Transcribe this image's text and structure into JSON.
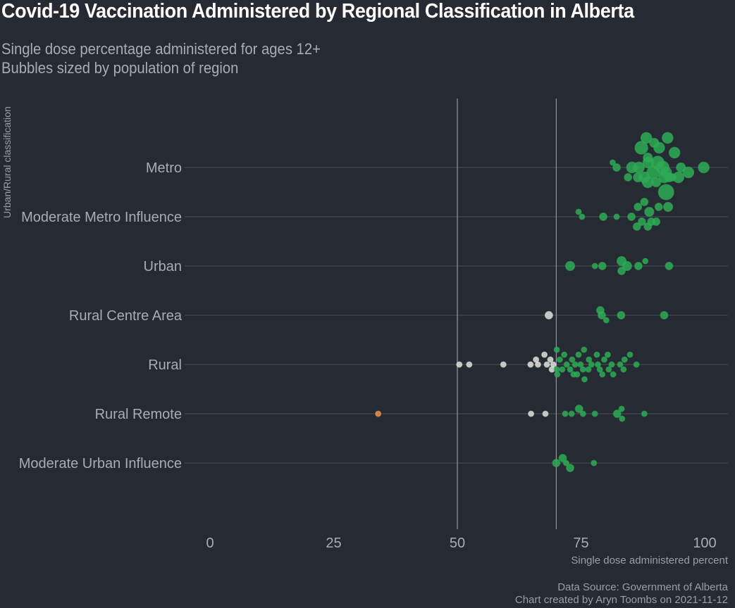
{
  "title": "Covid-19 Vaccination Administered by Regional Classification in Alberta",
  "subtitle_line1": "Single dose percentage administered for ages 12+",
  "subtitle_line2": "Bubbles sized by population of region",
  "caption_line1": "Data Source: Government of Alberta",
  "caption_line2": "Chart created by Aryn Toombs on 2021-11-12",
  "colors": {
    "background": "#262a33",
    "high": "#2eaa55",
    "medium": "#dfe3dc",
    "low": "#f0924a",
    "gridline": "#4a4e57",
    "reference_line": "#8c8f96"
  },
  "chart_data": {
    "type": "scatter",
    "title": "Covid-19 Vaccination Administered by Regional Classification in Alberta",
    "xlabel": "Single dose administered percent",
    "ylabel": "Urban/Rural classification",
    "xlim": [
      0,
      105
    ],
    "xticks": [
      0,
      25,
      50,
      75,
      100
    ],
    "reference_lines": [
      50,
      70
    ],
    "grid": "horizontal",
    "legend": "none",
    "categories": [
      "Metro",
      "Moderate Metro Influence",
      "Urban",
      "Rural Centre Area",
      "Rural",
      "Rural Remote",
      "Moderate Urban Influence"
    ],
    "points": [
      {
        "cat": 0,
        "x": 88.2,
        "off": -6,
        "size": 4
      },
      {
        "cat": 0,
        "x": 89.8,
        "off": -5,
        "size": 3
      },
      {
        "cat": 0,
        "x": 92.5,
        "off": -6,
        "size": 4
      },
      {
        "cat": 0,
        "x": 87.2,
        "off": -4,
        "size": 5
      },
      {
        "cat": 0,
        "x": 90.8,
        "off": -4,
        "size": 4
      },
      {
        "cat": 0,
        "x": 88.5,
        "off": -2,
        "size": 3
      },
      {
        "cat": 0,
        "x": 90.5,
        "off": -1,
        "size": 5
      },
      {
        "cat": 0,
        "x": 93.9,
        "off": -3,
        "size": 4
      },
      {
        "cat": 0,
        "x": 88.6,
        "off": -1,
        "size": 4
      },
      {
        "cat": 0,
        "x": 86.7,
        "off": 0,
        "size": 4
      },
      {
        "cat": 0,
        "x": 91.5,
        "off": 0,
        "size": 5
      },
      {
        "cat": 0,
        "x": 95.2,
        "off": 0,
        "size": 3
      },
      {
        "cat": 0,
        "x": 99.8,
        "off": 0,
        "size": 4
      },
      {
        "cat": 0,
        "x": 81.4,
        "off": -1,
        "size": 1
      },
      {
        "cat": 0,
        "x": 82.2,
        "off": 0,
        "size": 2
      },
      {
        "cat": 0,
        "x": 85.3,
        "off": 0,
        "size": 4
      },
      {
        "cat": 0,
        "x": 89.6,
        "off": 1,
        "size": 5
      },
      {
        "cat": 0,
        "x": 92.2,
        "off": 1,
        "size": 4
      },
      {
        "cat": 0,
        "x": 96.7,
        "off": 1,
        "size": 4
      },
      {
        "cat": 0,
        "x": 84.5,
        "off": 2,
        "size": 2
      },
      {
        "cat": 0,
        "x": 87.8,
        "off": 2,
        "size": 4
      },
      {
        "cat": 0,
        "x": 91.8,
        "off": 2,
        "size": 4
      },
      {
        "cat": 0,
        "x": 94.7,
        "off": 2,
        "size": 4
      },
      {
        "cat": 0,
        "x": 86.5,
        "off": 2,
        "size": 3
      },
      {
        "cat": 0,
        "x": 88.5,
        "off": 3,
        "size": 4
      },
      {
        "cat": 0,
        "x": 90.2,
        "off": 3,
        "size": 3
      },
      {
        "cat": 0,
        "x": 92.8,
        "off": 2,
        "size": 3
      },
      {
        "cat": 0,
        "x": 93.5,
        "off": 2,
        "size": 2
      },
      {
        "cat": 0,
        "x": 92.2,
        "off": 5,
        "size": 6
      },
      {
        "cat": 1,
        "x": 74.5,
        "off": -1,
        "size": 1
      },
      {
        "cat": 1,
        "x": 75.2,
        "off": 0,
        "size": 1
      },
      {
        "cat": 1,
        "x": 79.5,
        "off": 0,
        "size": 2
      },
      {
        "cat": 1,
        "x": 82.2,
        "off": 0,
        "size": 1
      },
      {
        "cat": 1,
        "x": 85.2,
        "off": 0,
        "size": 2
      },
      {
        "cat": 1,
        "x": 86.5,
        "off": -2,
        "size": 2
      },
      {
        "cat": 1,
        "x": 87.8,
        "off": -3,
        "size": 2
      },
      {
        "cat": 1,
        "x": 88.8,
        "off": -1,
        "size": 3
      },
      {
        "cat": 1,
        "x": 87.3,
        "off": 1,
        "size": 2
      },
      {
        "cat": 1,
        "x": 89.2,
        "off": 1,
        "size": 2
      },
      {
        "cat": 1,
        "x": 90.2,
        "off": 1,
        "size": 2
      },
      {
        "cat": 1,
        "x": 86.3,
        "off": 2,
        "size": 2
      },
      {
        "cat": 1,
        "x": 88.5,
        "off": 2,
        "size": 2
      },
      {
        "cat": 1,
        "x": 92.6,
        "off": -2,
        "size": 3
      },
      {
        "cat": 1,
        "x": 90.7,
        "off": -2,
        "size": 2
      },
      {
        "cat": 2,
        "x": 72.8,
        "off": 0,
        "size": 3
      },
      {
        "cat": 2,
        "x": 77.8,
        "off": 0,
        "size": 1
      },
      {
        "cat": 2,
        "x": 79.3,
        "off": 0,
        "size": 2
      },
      {
        "cat": 2,
        "x": 83.2,
        "off": -1,
        "size": 3
      },
      {
        "cat": 2,
        "x": 84.3,
        "off": 0,
        "size": 3
      },
      {
        "cat": 2,
        "x": 83.2,
        "off": 1,
        "size": 2
      },
      {
        "cat": 2,
        "x": 86.6,
        "off": 0,
        "size": 2
      },
      {
        "cat": 2,
        "x": 88.0,
        "off": -1,
        "size": 1
      },
      {
        "cat": 2,
        "x": 92.8,
        "off": 0,
        "size": 2
      },
      {
        "cat": 3,
        "x": 68.5,
        "off": 0,
        "size": 2
      },
      {
        "cat": 3,
        "x": 78.9,
        "off": -1,
        "size": 2
      },
      {
        "cat": 3,
        "x": 79.2,
        "off": 0,
        "size": 2
      },
      {
        "cat": 3,
        "x": 80.1,
        "off": 1,
        "size": 1
      },
      {
        "cat": 3,
        "x": 83.1,
        "off": 0,
        "size": 2
      },
      {
        "cat": 3,
        "x": 91.8,
        "off": 0,
        "size": 2
      },
      {
        "cat": 4,
        "x": 50.4,
        "off": 0,
        "size": 1
      },
      {
        "cat": 4,
        "x": 52.4,
        "off": 0,
        "size": 1
      },
      {
        "cat": 4,
        "x": 59.3,
        "off": 0,
        "size": 1
      },
      {
        "cat": 4,
        "x": 64.8,
        "off": 0,
        "size": 1
      },
      {
        "cat": 4,
        "x": 65.9,
        "off": -1,
        "size": 1
      },
      {
        "cat": 4,
        "x": 66.3,
        "off": 0,
        "size": 1
      },
      {
        "cat": 4,
        "x": 67.6,
        "off": -2,
        "size": 1
      },
      {
        "cat": 4,
        "x": 68.1,
        "off": 0,
        "size": 1
      },
      {
        "cat": 4,
        "x": 68.8,
        "off": -1,
        "size": 1
      },
      {
        "cat": 4,
        "x": 69.4,
        "off": 0,
        "size": 1
      },
      {
        "cat": 4,
        "x": 69.1,
        "off": 1,
        "size": 1
      },
      {
        "cat": 4,
        "x": 70.1,
        "off": -3,
        "size": 1
      },
      {
        "cat": 4,
        "x": 70.7,
        "off": -1,
        "size": 1
      },
      {
        "cat": 4,
        "x": 70.1,
        "off": 1,
        "size": 1
      },
      {
        "cat": 4,
        "x": 71.2,
        "off": 1,
        "size": 1
      },
      {
        "cat": 4,
        "x": 70.2,
        "off": 2,
        "size": 1
      },
      {
        "cat": 4,
        "x": 72.1,
        "off": 0,
        "size": 1
      },
      {
        "cat": 4,
        "x": 73.2,
        "off": -1,
        "size": 1
      },
      {
        "cat": 4,
        "x": 73.8,
        "off": 0,
        "size": 1
      },
      {
        "cat": 4,
        "x": 72.8,
        "off": 1,
        "size": 1
      },
      {
        "cat": 4,
        "x": 74.5,
        "off": -2,
        "size": 1
      },
      {
        "cat": 4,
        "x": 75.6,
        "off": -3,
        "size": 1
      },
      {
        "cat": 4,
        "x": 74.9,
        "off": 0,
        "size": 1
      },
      {
        "cat": 4,
        "x": 75.4,
        "off": 1,
        "size": 1
      },
      {
        "cat": 4,
        "x": 74.2,
        "off": 2,
        "size": 1
      },
      {
        "cat": 4,
        "x": 75.7,
        "off": 3,
        "size": 1
      },
      {
        "cat": 4,
        "x": 76.6,
        "off": -1,
        "size": 1
      },
      {
        "cat": 4,
        "x": 77.1,
        "off": 0,
        "size": 1
      },
      {
        "cat": 4,
        "x": 76.5,
        "off": 1,
        "size": 1
      },
      {
        "cat": 4,
        "x": 78.4,
        "off": 0,
        "size": 1
      },
      {
        "cat": 4,
        "x": 78.8,
        "off": 1,
        "size": 1
      },
      {
        "cat": 4,
        "x": 79.7,
        "off": -1,
        "size": 1
      },
      {
        "cat": 4,
        "x": 80.4,
        "off": -2,
        "size": 1
      },
      {
        "cat": 4,
        "x": 81.2,
        "off": 0,
        "size": 1
      },
      {
        "cat": 4,
        "x": 80.6,
        "off": 1,
        "size": 1
      },
      {
        "cat": 4,
        "x": 81.5,
        "off": 2,
        "size": 1
      },
      {
        "cat": 4,
        "x": 82.9,
        "off": 0,
        "size": 1
      },
      {
        "cat": 4,
        "x": 83.8,
        "off": -1,
        "size": 1
      },
      {
        "cat": 4,
        "x": 83.6,
        "off": 1,
        "size": 1
      },
      {
        "cat": 4,
        "x": 84.9,
        "off": -2,
        "size": 1
      },
      {
        "cat": 4,
        "x": 86.2,
        "off": 0,
        "size": 1
      },
      {
        "cat": 4,
        "x": 71.6,
        "off": -2,
        "size": 1
      },
      {
        "cat": 4,
        "x": 73.5,
        "off": 2,
        "size": 1
      },
      {
        "cat": 4,
        "x": 79.3,
        "off": 2,
        "size": 1
      },
      {
        "cat": 4,
        "x": 78.2,
        "off": -2,
        "size": 1
      },
      {
        "cat": 5,
        "x": 34.0,
        "off": 0,
        "size": 1
      },
      {
        "cat": 5,
        "x": 64.9,
        "off": 0,
        "size": 1
      },
      {
        "cat": 5,
        "x": 67.8,
        "off": 0,
        "size": 1
      },
      {
        "cat": 5,
        "x": 71.8,
        "off": 0,
        "size": 1
      },
      {
        "cat": 5,
        "x": 73.1,
        "off": 0,
        "size": 1
      },
      {
        "cat": 5,
        "x": 74.6,
        "off": -1,
        "size": 2
      },
      {
        "cat": 5,
        "x": 75.4,
        "off": 0,
        "size": 1
      },
      {
        "cat": 5,
        "x": 77.8,
        "off": 0,
        "size": 1
      },
      {
        "cat": 5,
        "x": 82.3,
        "off": 0,
        "size": 2
      },
      {
        "cat": 5,
        "x": 83.2,
        "off": -1,
        "size": 1
      },
      {
        "cat": 5,
        "x": 83.3,
        "off": 1,
        "size": 1
      },
      {
        "cat": 5,
        "x": 87.8,
        "off": 0,
        "size": 1
      },
      {
        "cat": 6,
        "x": 70.0,
        "off": 0,
        "size": 2
      },
      {
        "cat": 6,
        "x": 71.3,
        "off": -1,
        "size": 2
      },
      {
        "cat": 6,
        "x": 72.0,
        "off": 0,
        "size": 1
      },
      {
        "cat": 6,
        "x": 72.8,
        "off": 1,
        "size": 2
      },
      {
        "cat": 6,
        "x": 77.6,
        "off": 0,
        "size": 1
      }
    ]
  }
}
